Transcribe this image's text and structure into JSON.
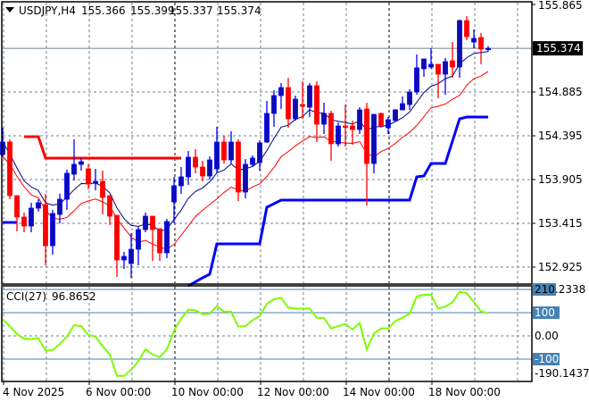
{
  "header": {
    "symbol": "USDJPY,H4",
    "open": "155.366",
    "high": "155.399",
    "low": "155.337",
    "close": "155.374"
  },
  "cci_header": {
    "name": "CCI(27)",
    "value": "96.8652"
  },
  "colors": {
    "bull_body": "#0c0cb4",
    "bull_edge": "#0000ff",
    "bear": "#ff0000",
    "ma_fast": "#000080",
    "ma_slow": "#ff0000",
    "step_low": "#0000ff",
    "step_high": "#ff0000",
    "cci": "#7cfc00",
    "level": "#4682b4",
    "grid": "#708090"
  },
  "chart_data": [
    {
      "type": "candlestick",
      "title": "USDJPY,H4",
      "ylim": [
        152.79,
        155.865
      ],
      "y_ticks": [
        "155.865",
        "154.885",
        "154.395",
        "153.905",
        "153.415",
        "152.925"
      ],
      "current_price": "155.374",
      "x_ticks": [
        {
          "index": 0,
          "label": "4 Nov 2025"
        },
        {
          "index": 12,
          "label": "6 Nov 00:00"
        },
        {
          "index": 24,
          "label": "10 Nov 00:00"
        },
        {
          "index": 36,
          "label": "12 Nov 00:00"
        },
        {
          "index": 48,
          "label": "14 Nov 00:00"
        },
        {
          "index": 60,
          "label": "18 Nov 00:00"
        }
      ],
      "period_separators": [
        24,
        54
      ],
      "ohlc": [
        [
          154.185,
          154.485,
          154.165,
          154.325
        ],
        [
          154.325,
          154.355,
          153.685,
          153.725
        ],
        [
          153.725,
          153.725,
          153.325,
          153.485
        ],
        [
          153.485,
          153.535,
          153.315,
          153.385
        ],
        [
          153.385,
          153.645,
          153.315,
          153.585
        ],
        [
          153.585,
          153.685,
          153.545,
          153.645
        ],
        [
          153.625,
          153.745,
          152.945,
          153.165
        ],
        [
          153.165,
          153.565,
          153.065,
          153.525
        ],
        [
          153.515,
          153.745,
          153.415,
          153.685
        ],
        [
          153.685,
          154.015,
          153.565,
          153.975
        ],
        [
          153.965,
          154.355,
          153.895,
          154.075
        ],
        [
          154.075,
          154.145,
          154.005,
          154.105
        ],
        [
          154.025,
          154.075,
          153.795,
          153.855
        ],
        [
          153.865,
          154.025,
          153.785,
          153.885
        ],
        [
          153.885,
          154.005,
          153.515,
          153.705
        ],
        [
          153.725,
          153.725,
          153.395,
          153.495
        ],
        [
          153.505,
          153.505,
          152.815,
          153.005
        ],
        [
          153.005,
          153.095,
          152.905,
          153.045
        ],
        [
          152.965,
          153.305,
          152.805,
          153.125
        ],
        [
          153.125,
          153.375,
          152.945,
          153.345
        ],
        [
          153.345,
          153.535,
          153.315,
          153.495
        ],
        [
          153.495,
          153.495,
          152.995,
          153.345
        ],
        [
          153.355,
          153.355,
          152.995,
          153.085
        ],
        [
          153.085,
          153.465,
          153.025,
          153.435
        ],
        [
          153.655,
          153.935,
          153.415,
          153.835
        ],
        [
          153.835,
          154.045,
          153.745,
          153.935
        ],
        [
          153.935,
          154.225,
          153.845,
          154.155
        ],
        [
          154.155,
          154.245,
          153.975,
          154.045
        ],
        [
          154.045,
          154.115,
          153.885,
          153.945
        ],
        [
          153.945,
          154.165,
          153.905,
          154.125
        ],
        [
          154.025,
          154.495,
          153.975,
          154.325
        ],
        [
          154.325,
          154.395,
          154.085,
          154.125
        ],
        [
          154.125,
          154.445,
          154.085,
          154.325
        ],
        [
          154.325,
          154.355,
          153.665,
          153.765
        ],
        [
          153.765,
          154.135,
          153.695,
          154.075
        ],
        [
          154.075,
          154.175,
          154.045,
          154.145
        ],
        [
          154.095,
          154.345,
          154.005,
          154.315
        ],
        [
          154.325,
          154.785,
          154.315,
          154.645
        ],
        [
          154.645,
          154.905,
          154.495,
          154.845
        ],
        [
          154.845,
          154.985,
          154.695,
          154.935
        ],
        [
          154.935,
          155.045,
          154.485,
          154.585
        ],
        [
          154.585,
          154.845,
          154.565,
          154.805
        ],
        [
          154.745,
          155.005,
          154.585,
          154.725
        ],
        [
          154.715,
          154.985,
          154.605,
          154.955
        ],
        [
          154.955,
          155.005,
          154.325,
          154.525
        ],
        [
          154.525,
          154.765,
          154.415,
          154.645
        ],
        [
          154.645,
          154.675,
          154.115,
          154.305
        ],
        [
          154.305,
          154.545,
          154.275,
          154.505
        ],
        [
          154.505,
          154.745,
          154.275,
          154.495
        ],
        [
          154.505,
          154.565,
          154.295,
          154.465
        ],
        [
          154.465,
          154.715,
          154.415,
          154.685
        ],
        [
          154.695,
          154.765,
          153.615,
          154.085
        ],
        [
          154.085,
          154.635,
          153.975,
          154.635
        ],
        [
          154.645,
          154.655,
          154.485,
          154.505
        ],
        [
          154.485,
          154.605,
          154.415,
          154.575
        ],
        [
          154.565,
          154.695,
          154.565,
          154.685
        ],
        [
          154.685,
          154.835,
          154.685,
          154.755
        ],
        [
          154.745,
          154.915,
          154.685,
          154.885
        ],
        [
          154.885,
          155.305,
          154.855,
          155.155
        ],
        [
          155.145,
          155.255,
          155.055,
          155.255
        ],
        [
          155.165,
          155.375,
          155.145,
          155.195
        ],
        [
          155.195,
          155.195,
          154.815,
          155.085
        ],
        [
          155.085,
          155.265,
          154.855,
          155.225
        ],
        [
          155.235,
          155.445,
          155.045,
          155.165
        ],
        [
          155.165,
          155.695,
          155.045,
          155.685
        ],
        [
          155.685,
          155.735,
          155.465,
          155.505
        ],
        [
          155.445,
          155.585,
          155.375,
          155.485
        ],
        [
          155.495,
          155.545,
          155.195,
          155.365
        ],
        [
          155.366,
          155.399,
          155.337,
          155.374
        ]
      ],
      "step_high": [
        [
          3,
          154.385
        ],
        [
          5,
          154.385
        ],
        [
          6,
          154.145
        ],
        [
          25,
          154.145
        ]
      ],
      "step_low_a": [
        [
          0,
          153.425
        ],
        [
          2,
          153.425
        ]
      ],
      "step_low_b": [
        [
          26,
          152.715
        ],
        [
          28,
          152.805
        ],
        [
          29,
          152.845
        ],
        [
          30,
          153.185
        ],
        [
          36,
          153.185
        ],
        [
          37,
          153.595
        ],
        [
          39,
          153.675
        ],
        [
          57,
          153.675
        ],
        [
          58,
          153.935
        ],
        [
          59,
          153.945
        ],
        [
          60,
          154.085
        ],
        [
          62,
          154.085
        ],
        [
          64,
          154.585
        ],
        [
          65,
          154.605
        ],
        [
          68,
          154.605
        ]
      ]
    },
    {
      "type": "line",
      "title": "CCI(27)",
      "ylim": [
        -190.1437,
        210.2338
      ],
      "y_ticks": [
        "210.2338",
        "100",
        "0.00",
        "-100",
        "-190.1437"
      ],
      "levels": [
        100,
        -100
      ],
      "values": [
        70,
        42,
        8,
        -12,
        -14,
        -10,
        -62,
        -62,
        -35,
        -3,
        46,
        42,
        4,
        -3,
        -45,
        -80,
        -172,
        -172,
        -146,
        -109,
        -58,
        -80,
        -92,
        -58,
        23,
        74,
        113,
        110,
        94,
        96,
        128,
        105,
        104,
        40,
        42,
        68,
        85,
        138,
        158,
        164,
        122,
        118,
        118,
        118,
        78,
        77,
        32,
        42,
        51,
        27,
        55,
        -58,
        10,
        32,
        32,
        64,
        78,
        96,
        170,
        177,
        177,
        118,
        126,
        145,
        190,
        184,
        145,
        106,
        96.8652
      ]
    }
  ]
}
